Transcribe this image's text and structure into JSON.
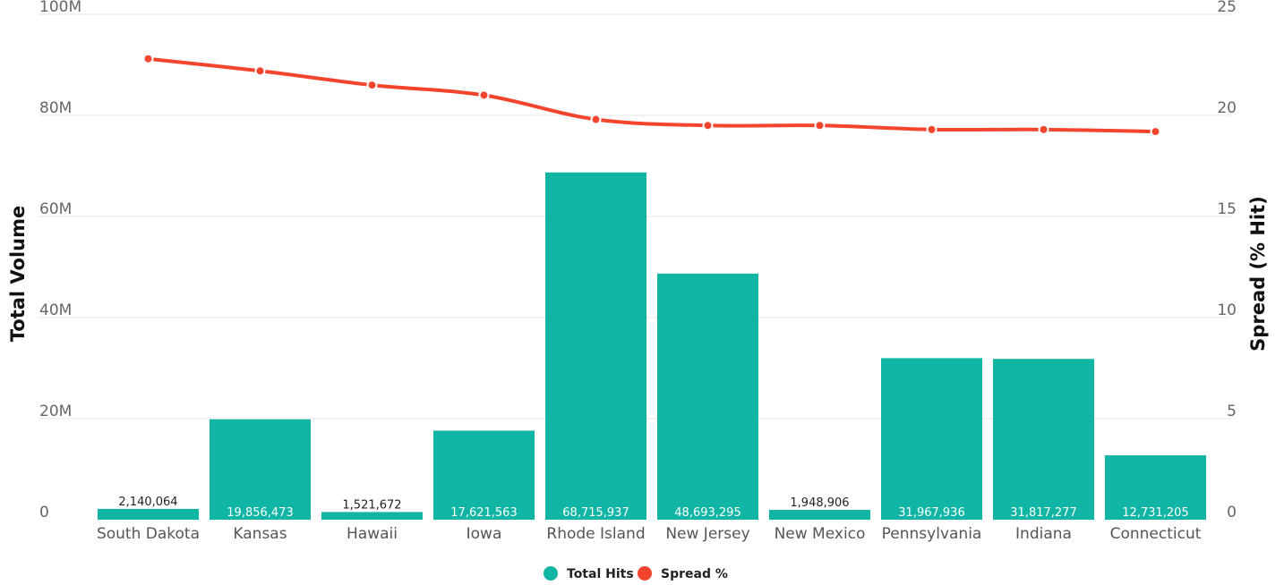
{
  "chart_data": {
    "type": "bar",
    "categories": [
      "South Dakota",
      "Kansas",
      "Hawaii",
      "Iowa",
      "Rhode Island",
      "New Jersey",
      "New Mexico",
      "Pennsylvania",
      "Indiana",
      "Connecticut"
    ],
    "series": [
      {
        "name": "Total Hits",
        "type": "bar",
        "axis": "left",
        "color": "#10b5a4",
        "values": [
          2140064,
          19856473,
          1521672,
          17621563,
          68715937,
          48693295,
          1948906,
          31967936,
          31817277,
          12731205
        ],
        "labels": [
          "2,140,064",
          "19,856,473",
          "1,521,672",
          "17,621,563",
          "68,715,937",
          "48,693,295",
          "1,948,906",
          "31,967,936",
          "31,817,277",
          "12,731,205"
        ]
      },
      {
        "name": "Spread %",
        "type": "line",
        "axis": "right",
        "color": "#f3452e",
        "values": [
          22.8,
          22.2,
          21.5,
          21.0,
          19.8,
          19.5,
          19.5,
          19.3,
          19.3,
          19.2
        ]
      }
    ],
    "ylabel": "Total Volume",
    "y2label": "Spread (% Hit)",
    "ylim": [
      0,
      100000000
    ],
    "y2lim": [
      0,
      25
    ],
    "yticks": [
      0,
      20000000,
      40000000,
      60000000,
      80000000,
      100000000
    ],
    "ytick_labels": [
      "0",
      "20M",
      "40M",
      "60M",
      "80M",
      "100M"
    ],
    "y2ticks": [
      0,
      5,
      10,
      15,
      20,
      25
    ],
    "y2tick_labels": [
      "0",
      "5",
      "10",
      "15",
      "20",
      "25"
    ],
    "grid": true,
    "legend_position": "bottom-center"
  }
}
